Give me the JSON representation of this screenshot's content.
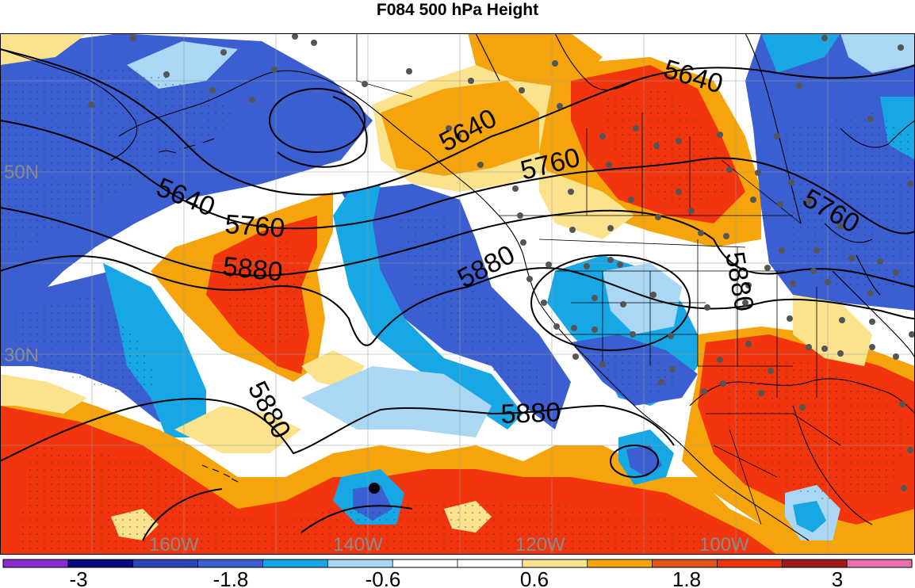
{
  "title": "F084 500 hPa Height",
  "latitude_labels": [
    "50N",
    "30N"
  ],
  "longitude_labels": [
    "160W",
    "140W",
    "120W",
    "100W"
  ],
  "contour_labels": [
    "5640",
    "5760",
    "5880"
  ],
  "colorbar": {
    "colors": [
      "#8c2bd0",
      "#070a7d",
      "#2a45b5",
      "#3b5fd1",
      "#16a7e4",
      "#a9d7f4",
      "#ffffff",
      "#ffffff",
      "#fbe38e",
      "#f5a50b",
      "#e5531a",
      "#f2350c",
      "#a01818",
      "#e86fb0"
    ],
    "tick_labels": [
      "-3",
      "-1.8",
      "-0.6",
      "0.6",
      "1.8",
      "3"
    ]
  },
  "colors": {
    "strong_negative": "#3b5fd1",
    "mild_negative": "#16a7e4",
    "weak_negative": "#a9d7f4",
    "weak_positive": "#fbe38e",
    "mild_positive": "#f5a50b",
    "strong_positive": "#f2350c"
  }
}
